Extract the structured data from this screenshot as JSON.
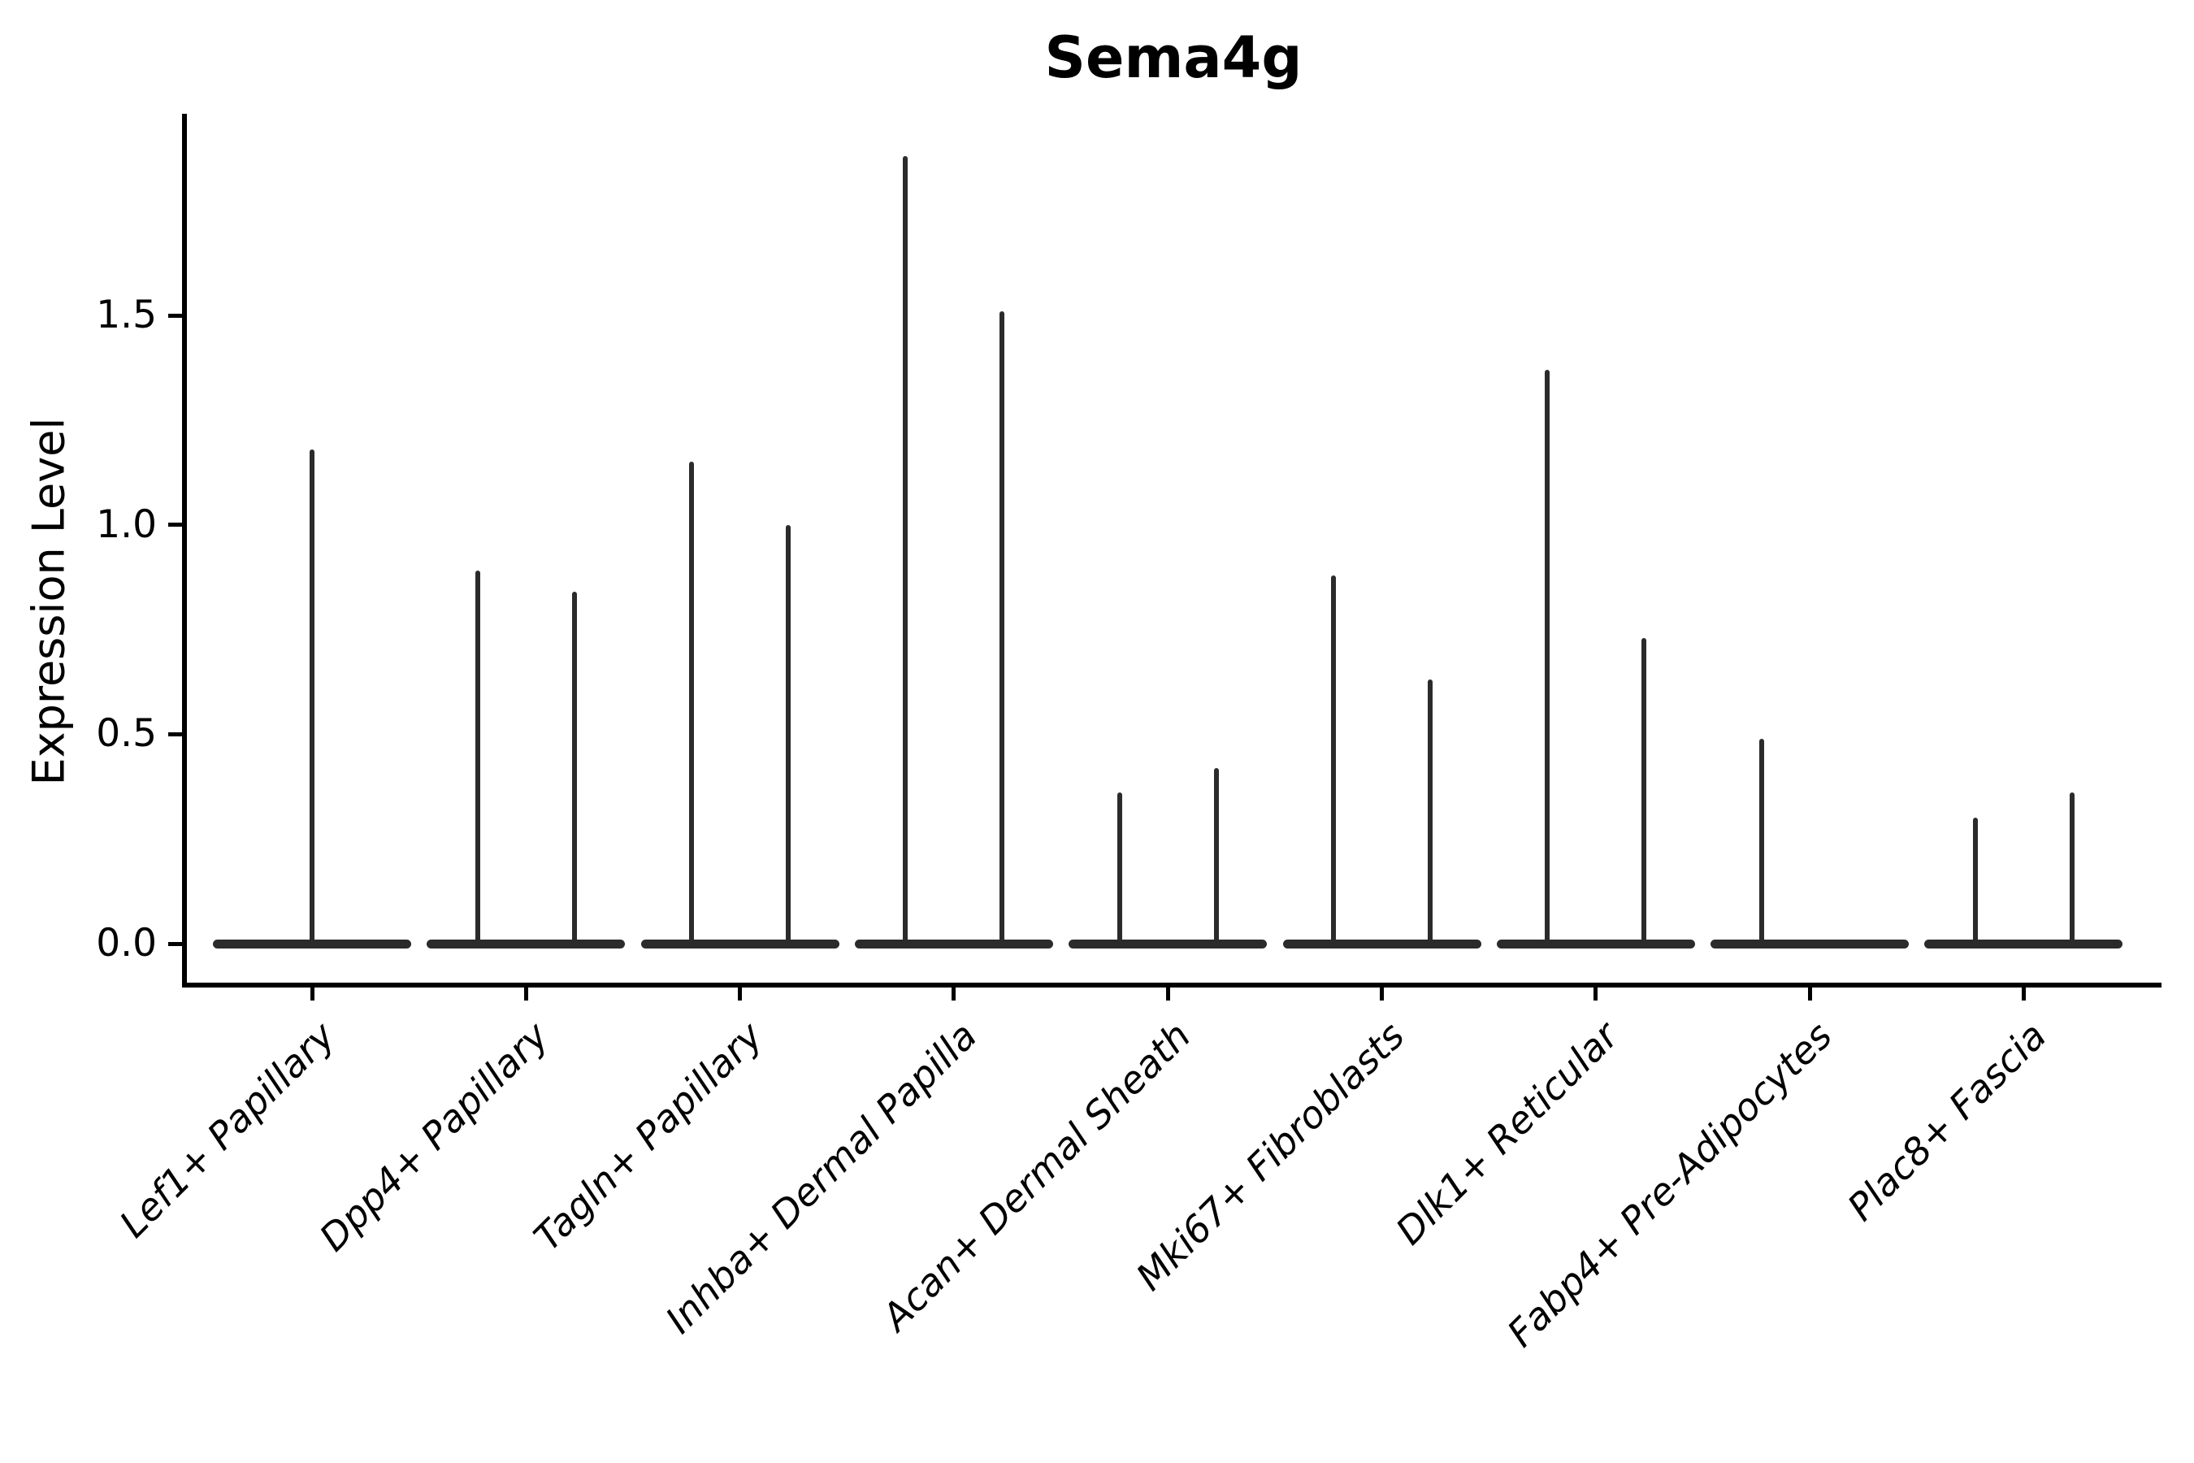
{
  "figure": {
    "title": "Sema4g",
    "ylabel": "Expression Level",
    "background_color": "#ffffff",
    "violin_color": "#2b2b2b",
    "axis_color": "#000000"
  },
  "chart_data": {
    "type": "violin",
    "title": "Sema4g",
    "xlabel": "",
    "ylabel": "Expression Level",
    "ylim": [
      -0.09,
      1.98
    ],
    "ytick_labels": [
      "0.0",
      "0.5",
      "1.0",
      "1.5"
    ],
    "ytick_values": [
      0.0,
      0.5,
      1.0,
      1.5
    ],
    "grid": false,
    "legend_position": "none",
    "x_tick_rotation_deg": 45,
    "categories": [
      "Lef1+ Papillary",
      "Dpp4+ Papillary",
      "Tagln+ Papillary",
      "Inhba+ Dermal Papilla",
      "Acan+ Dermal Sheath",
      "Mki67+ Fibroblasts",
      "Dlk1+ Reticular",
      "Fabp4+ Pre-Adipocytes",
      "Plac8+ Fascia"
    ],
    "series": [
      {
        "category": "Lef1+ Papillary",
        "baseline_value": 0.0,
        "spikes": [
          {
            "position": "center",
            "max": 1.18
          }
        ]
      },
      {
        "category": "Dpp4+ Papillary",
        "baseline_value": 0.0,
        "spikes": [
          {
            "position": "left",
            "max": 0.89
          },
          {
            "position": "right",
            "max": 0.84
          }
        ]
      },
      {
        "category": "Tagln+ Papillary",
        "baseline_value": 0.0,
        "spikes": [
          {
            "position": "left",
            "max": 1.15
          },
          {
            "position": "right",
            "max": 1.0
          }
        ]
      },
      {
        "category": "Inhba+ Dermal Papilla",
        "baseline_value": 0.0,
        "spikes": [
          {
            "position": "left",
            "max": 1.88
          },
          {
            "position": "right",
            "max": 1.51
          }
        ]
      },
      {
        "category": "Acan+ Dermal Sheath",
        "baseline_value": 0.0,
        "spikes": [
          {
            "position": "left",
            "max": 0.36
          },
          {
            "position": "right",
            "max": 0.42
          }
        ]
      },
      {
        "category": "Mki67+ Fibroblasts",
        "baseline_value": 0.0,
        "spikes": [
          {
            "position": "left",
            "max": 0.88
          },
          {
            "position": "right",
            "max": 0.63
          }
        ]
      },
      {
        "category": "Dlk1+ Reticular",
        "baseline_value": 0.0,
        "spikes": [
          {
            "position": "left",
            "max": 1.37
          },
          {
            "position": "right",
            "max": 0.73
          }
        ]
      },
      {
        "category": "Fabp4+ Pre-Adipocytes",
        "baseline_value": 0.0,
        "spikes": [
          {
            "position": "left",
            "max": 0.49
          }
        ]
      },
      {
        "category": "Plac8+ Fascia",
        "baseline_value": 0.0,
        "spikes": [
          {
            "position": "left",
            "max": 0.3
          },
          {
            "position": "right",
            "max": 0.36
          }
        ]
      }
    ]
  }
}
